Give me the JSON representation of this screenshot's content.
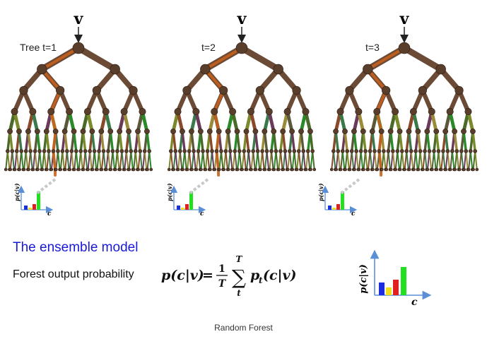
{
  "trees": [
    {
      "label": "Tree t=1",
      "input": "v"
    },
    {
      "label": "t=2",
      "input": "v"
    },
    {
      "label": "t=3",
      "input": "v"
    }
  ],
  "small_histogram": {
    "ylabel": "p(c|v)",
    "xlabel": "c"
  },
  "ensemble": {
    "title": "The ensemble model",
    "label": "Forest output probability",
    "formula": {
      "lhs": "p(c|v)",
      "eq": "=",
      "frac_num": "1",
      "frac_den": "T",
      "sum_upper": "T",
      "sum_symbol": "∑",
      "sum_lower": "t",
      "term": "p",
      "term_sub": "t",
      "term_arg": "(c|v)"
    }
  },
  "big_histogram": {
    "ylabel": "p(c|v)",
    "xlabel": "c"
  },
  "colors": {
    "branch": "#6b4a36",
    "path": "#c8601c",
    "node": "#5a3e2c",
    "title_blue": "#1a1ad6",
    "axis": "#5a8fd8",
    "bar_blue": "#1a2ee0",
    "bar_yellow": "#f0e020",
    "bar_red": "#e02020",
    "bar_green": "#20e020"
  },
  "caption": "Random Forest"
}
